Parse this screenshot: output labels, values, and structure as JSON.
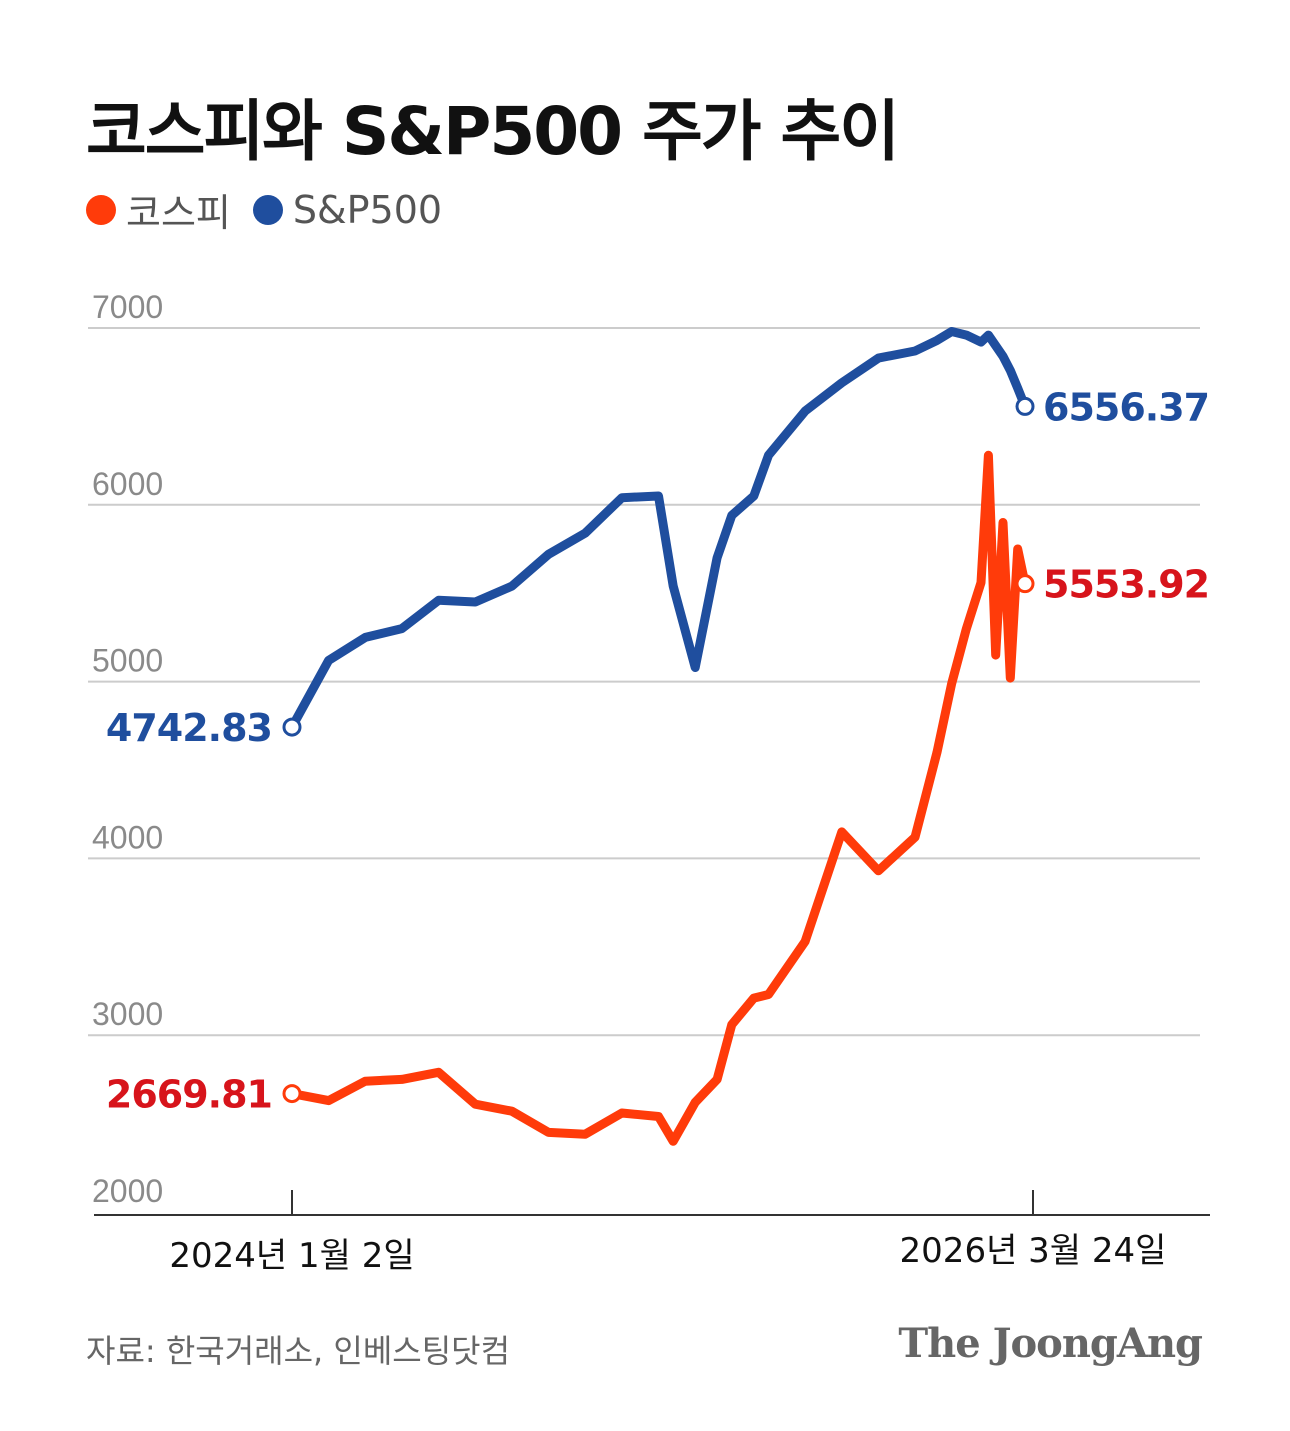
{
  "title": "코스피와 S&P500 주가 추이",
  "source": "자료: 한국거래소, 인베스팅닷컴",
  "logo": "The JoongAng",
  "colors": {
    "kospi": "#ff3b0a",
    "sp500": "#1f4e9e",
    "kospi_label": "#d7141b",
    "sp500_label": "#1f4e9e",
    "grid": "#cccccc",
    "tick": "#8a8a8a"
  },
  "chart_data": {
    "type": "line",
    "title": "코스피와 S&P500 주가 추이",
    "legend": [
      "코스피",
      "S&P500"
    ],
    "legend_position": "top-left",
    "xlabel": "",
    "ylabel": "",
    "ylim": [
      2000,
      7000
    ],
    "y_ticks": [
      "7000",
      "6000",
      "5000",
      "4000",
      "3000",
      "2000"
    ],
    "x_tick_labels": [
      "2024년 1월 2일",
      "2026년 3월 24일"
    ],
    "grid": true,
    "x": [
      0,
      0.05,
      0.1,
      0.15,
      0.2,
      0.25,
      0.3,
      0.35,
      0.4,
      0.45,
      0.5,
      0.52,
      0.55,
      0.58,
      0.6,
      0.63,
      0.65,
      0.7,
      0.75,
      0.8,
      0.85,
      0.88,
      0.9,
      0.92,
      0.94,
      0.95,
      0.96,
      0.97,
      0.98,
      0.99,
      1.0
    ],
    "series": [
      {
        "name": "S&P500",
        "values": [
          4742.83,
          5120,
          5250,
          5300,
          5460,
          5450,
          5540,
          5720,
          5840,
          6040,
          6050,
          5540,
          5080,
          5700,
          5940,
          6050,
          6280,
          6530,
          6690,
          6830,
          6870,
          6930,
          6980,
          6960,
          6920,
          6960,
          6900,
          6840,
          6760,
          6660,
          6556.37
        ],
        "start_label": "4742.83",
        "end_label": "6556.37"
      },
      {
        "name": "코스피",
        "values": [
          2669.81,
          2630,
          2740,
          2750,
          2790,
          2610,
          2570,
          2450,
          2440,
          2560,
          2540,
          2400,
          2620,
          2750,
          3060,
          3210,
          3230,
          3530,
          4150,
          3930,
          4120,
          4600,
          4990,
          5300,
          5560,
          6280,
          5150,
          5900,
          5020,
          5750,
          5553.92
        ],
        "start_label": "2669.81",
        "end_label": "5553.92"
      }
    ]
  }
}
